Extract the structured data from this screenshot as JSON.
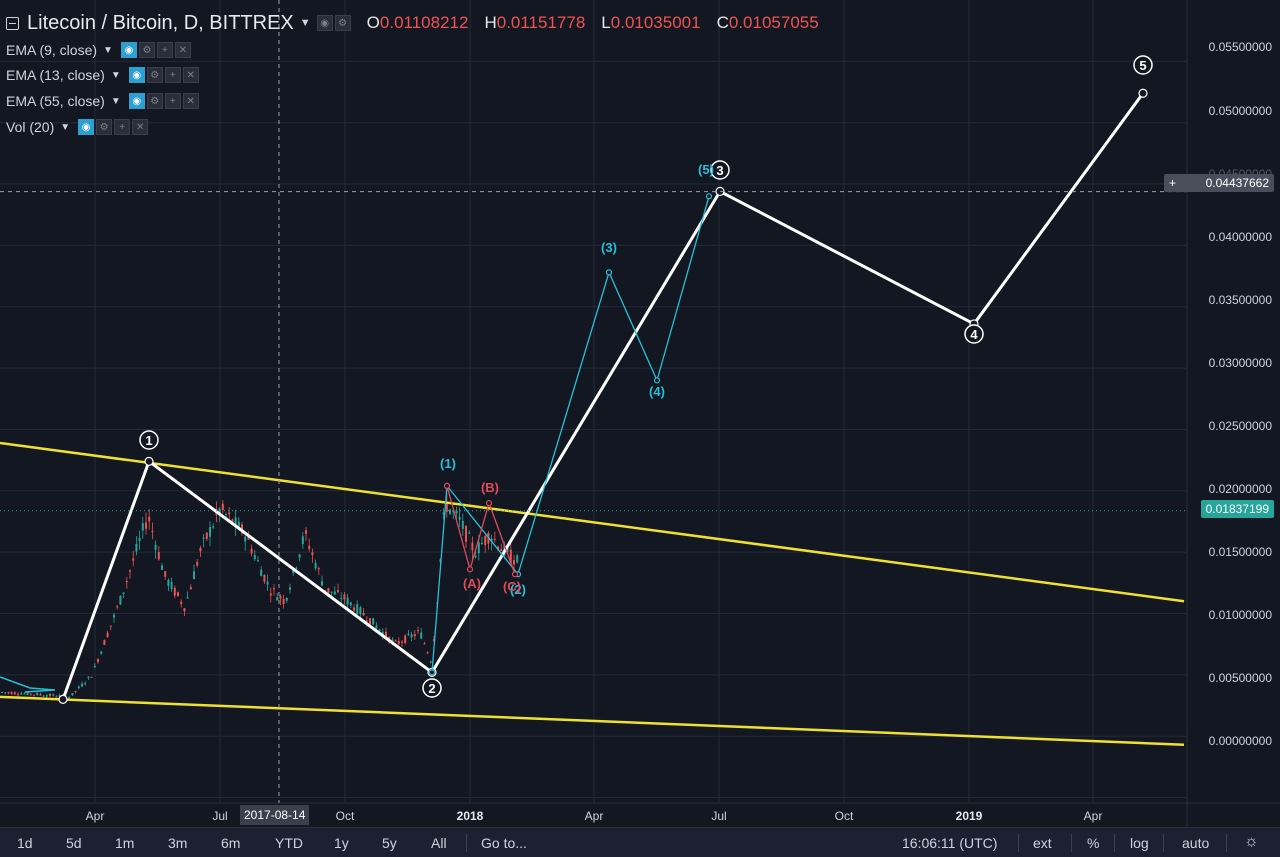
{
  "header": {
    "symbol": "Litecoin / Bitcoin, D, BITTREX",
    "ohlc": [
      {
        "label": "O",
        "value": "0.01108212"
      },
      {
        "label": "H",
        "value": "0.01151778"
      },
      {
        "label": "L",
        "value": "0.01035001"
      },
      {
        "label": "C",
        "value": "0.01057055"
      }
    ]
  },
  "indicators": [
    {
      "label": "EMA (9, close)"
    },
    {
      "label": "EMA (13, close)"
    },
    {
      "label": "EMA (55, close)"
    },
    {
      "label": "Vol (20)"
    }
  ],
  "price_axis": {
    "labels": [
      "0.05500000",
      "0.05000000",
      "0.04500000",
      "0.04000000",
      "0.03500000",
      "0.03000000",
      "0.02500000",
      "0.02000000",
      "0.01500000",
      "0.01000000",
      "0.00500000",
      "0.00000000"
    ],
    "crosshair_price": "0.04437662",
    "crosshair_plus": "+",
    "last_price": "0.01837199"
  },
  "time_axis": {
    "labels": [
      "Apr",
      "Jul",
      "Oct",
      "2018",
      "Apr",
      "Jul",
      "Oct",
      "2019",
      "Apr"
    ],
    "crosshair_date": "2017-08-14"
  },
  "chart_data": {
    "type": "line",
    "series": [
      {
        "values": [
          0.003,
          0.0224,
          0.0052,
          0.0444,
          0.0336,
          0.0524
        ]
      },
      {
        "values": [
          0.0052,
          0.0204,
          0.0132,
          0.0378,
          0.029,
          0.044
        ]
      },
      {
        "values": [
          0.0204,
          0.0136,
          0.019,
          0.0132
        ]
      }
    ],
    "wave_labels_primary": [
      "1",
      "2",
      "3",
      "4",
      "5"
    ],
    "wave_labels_minor": [
      "(1)",
      "(2)",
      "(3)",
      "(4)",
      "(5)"
    ],
    "wave_labels_corrective": [
      "(A)",
      "(B)",
      "(C)"
    ],
    "trendlines": [
      {
        "from": [
          0.0239
        ],
        "to": [
          0.011
        ]
      },
      {
        "from": [
          0.0032
        ],
        "to": [
          -0.0007
        ]
      }
    ],
    "ylim": [
      -0.0052,
      0.06
    ],
    "colors": {
      "primary": "#ffffff",
      "minor": "#28c0d8",
      "corrective": "#e04b5a",
      "trend": "#f0e130",
      "up": "#26a69a",
      "down": "#ef5350"
    }
  },
  "bottom_bar": {
    "timeframes": [
      "1d",
      "5d",
      "1m",
      "3m",
      "6m",
      "YTD",
      "1y",
      "5y",
      "All"
    ],
    "goto": "Go to...",
    "time": "16:06:11 (UTC)",
    "right": [
      "ext",
      "%",
      "log",
      "auto"
    ]
  }
}
